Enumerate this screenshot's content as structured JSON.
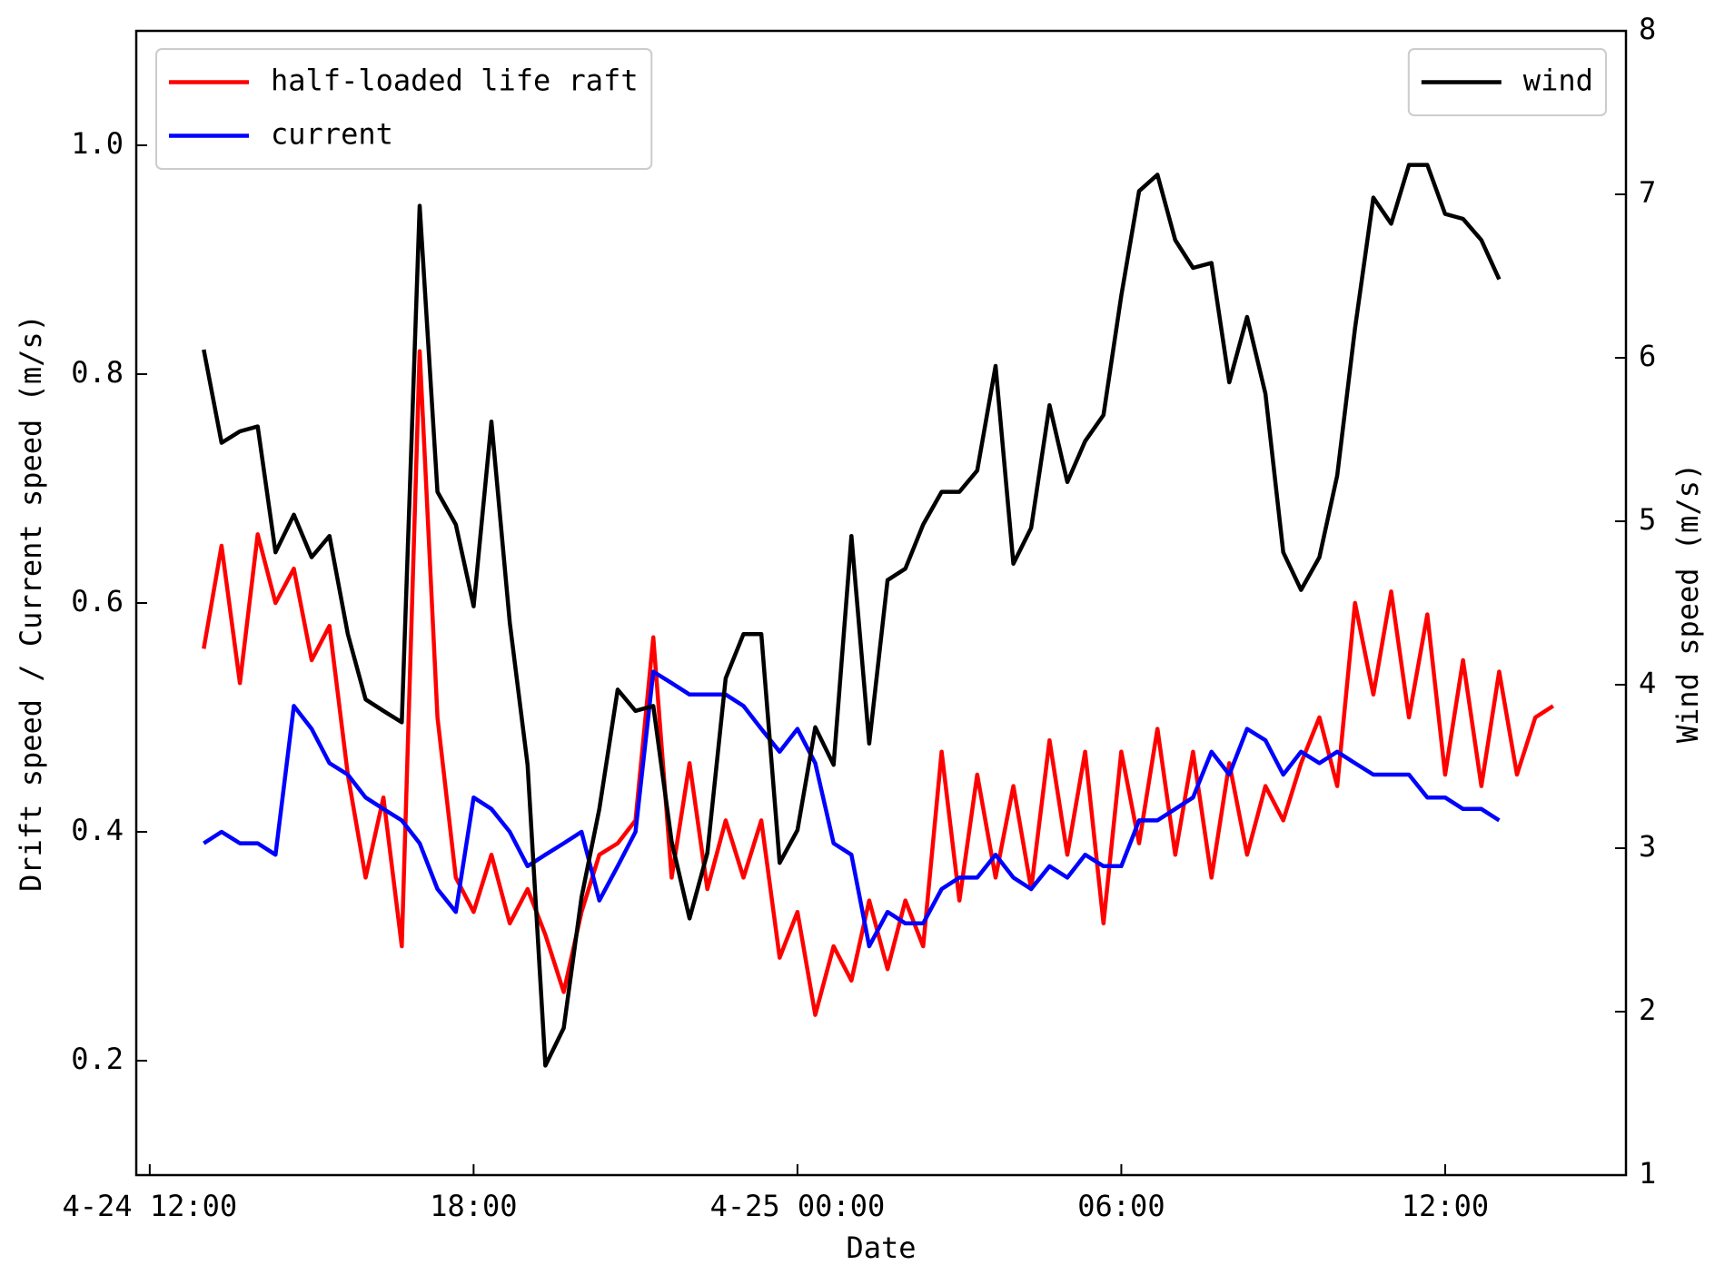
{
  "chart_data": {
    "type": "line",
    "xlabel": "Date",
    "ylabel": "Drift speed / Current speed (m/s)",
    "y2label": "Wind speed (m/s)",
    "xlim": [
      11.75,
      39.35
    ],
    "xticks": [
      {
        "value": 12,
        "label": "4-24 12:00"
      },
      {
        "value": 18,
        "label": "18:00"
      },
      {
        "value": 24,
        "label": "4-25 00:00"
      },
      {
        "value": 30,
        "label": "06:00"
      },
      {
        "value": 36,
        "label": "12:00"
      }
    ],
    "ylim": [
      0.1,
      1.1
    ],
    "yticks": [
      0.2,
      0.4,
      0.6,
      0.8,
      {
        "value": 1,
        "label": "1.0"
      }
    ],
    "y2lim": [
      1,
      8
    ],
    "y2ticks": [
      1,
      2,
      3,
      4,
      5,
      6,
      7,
      8
    ],
    "legend": "upper left",
    "legend2": "upper right",
    "x": [
      13,
      13.33,
      13.67,
      14,
      14.33,
      14.67,
      15,
      15.33,
      15.67,
      16,
      16.33,
      16.67,
      17,
      17.33,
      17.67,
      18,
      18.33,
      18.67,
      19,
      19.33,
      19.67,
      20,
      20.33,
      20.67,
      21,
      21.33,
      21.67,
      22,
      22.33,
      22.67,
      23,
      23.33,
      23.67,
      24,
      24.33,
      24.67,
      25,
      25.33,
      25.67,
      26,
      26.33,
      26.67,
      27,
      27.33,
      27.67,
      28,
      28.33,
      28.67,
      29,
      29.33,
      29.67,
      30,
      30.33,
      30.67,
      31,
      31.33,
      31.67,
      32,
      32.33,
      32.67,
      33,
      33.33,
      33.67,
      34,
      34.33,
      34.67,
      35,
      35.33,
      35.67,
      36,
      36.33,
      36.67,
      37,
      37.33,
      37.67,
      38
    ],
    "series": [
      {
        "name": "half-loaded life raft",
        "color": "#ff0000",
        "values": [
          0.56,
          0.65,
          0.53,
          0.66,
          0.6,
          0.63,
          0.55,
          0.58,
          0.45,
          0.36,
          0.43,
          0.3,
          0.82,
          0.5,
          0.36,
          0.33,
          0.38,
          0.32,
          0.35,
          0.31,
          0.26,
          0.33,
          0.38,
          0.39,
          0.41,
          0.57,
          0.36,
          0.46,
          0.35,
          0.41,
          0.36,
          0.41,
          0.29,
          0.33,
          0.24,
          0.3,
          0.27,
          0.34,
          0.28,
          0.34,
          0.3,
          0.47,
          0.34,
          0.45,
          0.36,
          0.44,
          0.35,
          0.48,
          0.38,
          0.47,
          0.32,
          0.47,
          0.39,
          0.49,
          0.38,
          0.47,
          0.36,
          0.46,
          0.38,
          0.44,
          0.41,
          0.46,
          0.5,
          0.44,
          0.6,
          0.52,
          0.61,
          0.5,
          0.59,
          0.45,
          0.55,
          0.44,
          0.54,
          0.45,
          0.5,
          0.51
        ]
      },
      {
        "name": "current",
        "color": "#0000ff",
        "values": [
          0.39,
          0.4,
          0.39,
          0.39,
          0.38,
          0.51,
          0.49,
          0.46,
          0.45,
          0.43,
          0.42,
          0.41,
          0.39,
          0.35,
          0.33,
          0.43,
          0.42,
          0.4,
          0.37,
          0.38,
          0.39,
          0.4,
          0.34,
          0.37,
          0.4,
          0.54,
          0.53,
          0.52,
          0.52,
          0.52,
          0.51,
          0.49,
          0.47,
          0.49,
          0.46,
          0.39,
          0.38,
          0.3,
          0.33,
          0.32,
          0.32,
          0.35,
          0.36,
          0.36,
          0.38,
          0.36,
          0.35,
          0.37,
          0.36,
          0.38,
          0.37,
          0.37,
          0.41,
          0.41,
          0.42,
          0.43,
          0.47,
          0.45,
          0.49,
          0.48,
          0.45,
          0.47,
          0.46,
          0.47,
          0.46,
          0.45,
          0.45,
          0.45,
          0.43,
          0.43,
          0.42,
          0.42,
          0.41,
          null,
          null,
          null
        ]
      },
      {
        "name": "wind",
        "color": "#000000",
        "axis": "y2",
        "values": [
          6.05,
          5.48,
          5.55,
          5.58,
          4.81,
          5.04,
          4.78,
          4.91,
          4.31,
          3.91,
          3.84,
          3.77,
          6.93,
          5.18,
          4.98,
          4.48,
          5.61,
          4.38,
          3.51,
          1.67,
          1.9,
          2.7,
          3.24,
          3.97,
          3.84,
          3.87,
          3.04,
          2.57,
          2.97,
          4.04,
          4.31,
          4.31,
          2.91,
          3.11,
          3.74,
          3.51,
          4.91,
          3.64,
          4.64,
          4.71,
          4.98,
          5.18,
          5.18,
          5.31,
          5.95,
          4.74,
          4.96,
          5.71,
          5.24,
          5.49,
          5.65,
          6.38,
          7.02,
          7.12,
          6.72,
          6.55,
          6.58,
          5.85,
          6.25,
          5.78,
          4.81,
          4.58,
          4.78,
          5.28,
          6.18,
          6.98,
          6.82,
          7.18,
          7.18,
          6.88,
          6.85,
          6.72,
          6.48,
          null,
          null,
          null
        ]
      }
    ]
  }
}
